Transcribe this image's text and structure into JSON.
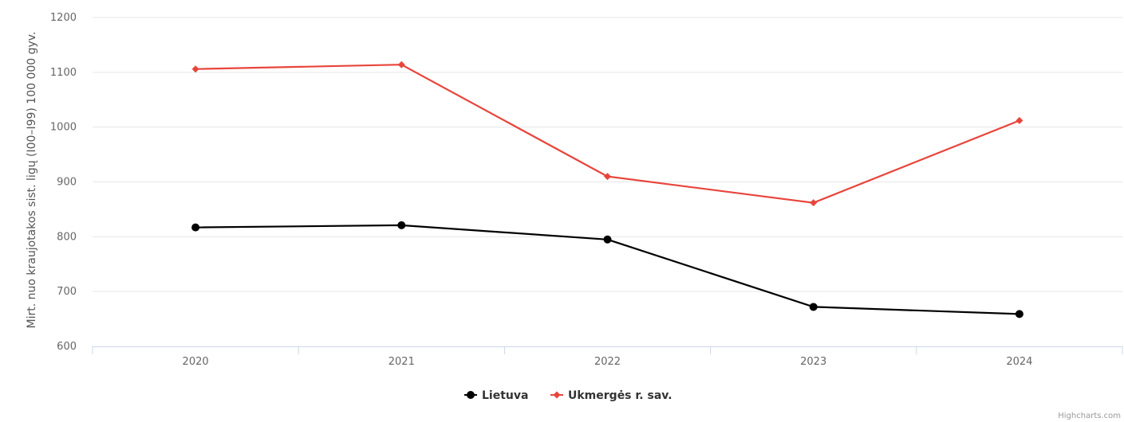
{
  "chart_data": {
    "type": "line",
    "title": "",
    "xlabel": "",
    "ylabel": "Mirt. nuo kraujotakos sist. ligų (I00–I99) 100 000 gyv.",
    "categories": [
      "2020",
      "2021",
      "2022",
      "2023",
      "2024"
    ],
    "yticks": [
      "600",
      "700",
      "800",
      "900",
      "1000",
      "1100",
      "1200"
    ],
    "ylim": [
      600,
      1200
    ],
    "grid": true,
    "legend_position": "bottom-center",
    "series": [
      {
        "name": "Lietuva",
        "marker": "circle",
        "color": "#000000",
        "values": [
          817,
          821,
          795,
          672,
          659
        ]
      },
      {
        "name": "Ukmergės r. sav.",
        "marker": "diamond",
        "color": "#e8453c",
        "values": [
          1106,
          1114,
          910,
          862,
          1012
        ]
      }
    ]
  },
  "credits": "Highcharts.com"
}
